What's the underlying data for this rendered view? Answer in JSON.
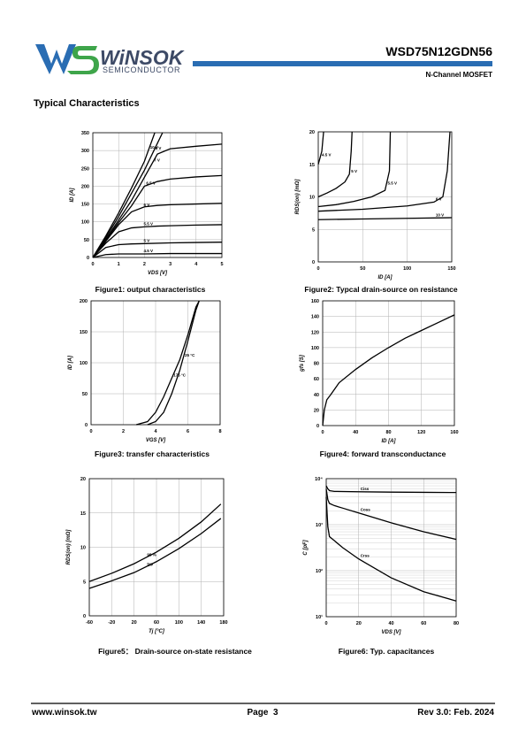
{
  "header": {
    "logo_main": "WiNSOK",
    "logo_sub": "SEMICONDUCTOR",
    "part_number": "WSD75N12GDN56",
    "device_type": "N-Channel MOSFET"
  },
  "section_title": "Typical Characteristics",
  "captions": [
    "Figure1: output characteristics",
    "Figure2: Typcal  drain-source on resistance",
    "Figure3: transfer characteristics",
    "Figure4: forward transconductance",
    "Figure5： Drain-source on-state resistance",
    "Figure6:  Typ. capacitances"
  ],
  "chart_data": [
    {
      "type": "line",
      "x_label": "VDS [V]",
      "y_label": "ID [A]",
      "xlim": [
        0,
        5
      ],
      "xticks": [
        0,
        1,
        2,
        3,
        4,
        5
      ],
      "ylim": [
        0,
        350
      ],
      "yticks": [
        0,
        50,
        100,
        150,
        200,
        250,
        300,
        350
      ],
      "grid": true,
      "series": [
        {
          "name": "10 V",
          "x": [
            0,
            0.5,
            1,
            1.5,
            2,
            2.4
          ],
          "values": [
            0,
            60,
            125,
            195,
            270,
            350
          ]
        },
        {
          "name": "8 V",
          "x": [
            0,
            0.5,
            1,
            1.5,
            2,
            2.5,
            2.7
          ],
          "values": [
            0,
            55,
            115,
            180,
            245,
            320,
            350
          ]
        },
        {
          "name": "7 V",
          "x": [
            0,
            0.5,
            1,
            1.5,
            2,
            2.5,
            3,
            4,
            5
          ],
          "values": [
            0,
            50,
            105,
            160,
            225,
            290,
            305,
            312,
            318
          ]
        },
        {
          "name": "6.5 V",
          "x": [
            0,
            0.5,
            1,
            1.5,
            2,
            2.5,
            3,
            4,
            5
          ],
          "values": [
            0,
            48,
            98,
            145,
            200,
            213,
            220,
            226,
            230
          ]
        },
        {
          "name": "6 V",
          "x": [
            0,
            0.5,
            1,
            1.5,
            2,
            2.5,
            3,
            4,
            5
          ],
          "values": [
            0,
            45,
            92,
            128,
            142,
            146,
            148,
            150,
            152
          ]
        },
        {
          "name": "5.5 V",
          "x": [
            0,
            0.5,
            1,
            1.5,
            2,
            2.5,
            3,
            4,
            5
          ],
          "values": [
            0,
            40,
            72,
            83,
            86,
            88,
            89,
            91,
            92
          ]
        },
        {
          "name": "5 V",
          "x": [
            0,
            0.5,
            1,
            1.5,
            2,
            3,
            4,
            5
          ],
          "values": [
            0,
            28,
            36,
            38,
            39,
            41,
            42,
            43
          ]
        },
        {
          "name": "4.5 V",
          "x": [
            0,
            0.5,
            1,
            2,
            3,
            4,
            5
          ],
          "values": [
            0,
            8,
            10,
            10,
            11,
            11,
            11
          ]
        }
      ]
    },
    {
      "type": "line",
      "x_label": "ID [A]",
      "y_label": "RDS(on) [mΩ]",
      "xlim": [
        0,
        150
      ],
      "xticks": [
        0,
        50,
        100,
        150
      ],
      "ylim": [
        0,
        20
      ],
      "yticks": [
        0,
        5,
        10,
        15,
        20
      ],
      "grid": true,
      "series": [
        {
          "name": "4.5 V",
          "x": [
            0,
            2,
            4,
            5,
            6
          ],
          "values": [
            15,
            16,
            17,
            18.5,
            20
          ]
        },
        {
          "name": "5 V",
          "x": [
            0,
            10,
            20,
            30,
            35,
            37,
            38
          ],
          "values": [
            10,
            10.6,
            11.3,
            12.3,
            13.5,
            17,
            20
          ]
        },
        {
          "name": "5.5 V",
          "x": [
            0,
            20,
            40,
            60,
            75,
            80,
            81
          ],
          "values": [
            8.5,
            8.8,
            9.3,
            10,
            11,
            14,
            20
          ]
        },
        {
          "name": "6 V",
          "x": [
            0,
            50,
            100,
            130,
            140,
            145,
            148
          ],
          "values": [
            7.8,
            8.1,
            8.6,
            9.2,
            10,
            14,
            20
          ]
        },
        {
          "name": "10 V",
          "x": [
            0,
            50,
            100,
            150
          ],
          "values": [
            6.5,
            6.6,
            6.7,
            6.8
          ]
        }
      ]
    },
    {
      "type": "line",
      "x_label": "VGS [V]",
      "y_label": "ID [A]",
      "xlim": [
        0,
        8
      ],
      "xticks": [
        0,
        2,
        4,
        6,
        8
      ],
      "ylim": [
        0,
        200
      ],
      "yticks": [
        0,
        50,
        100,
        150,
        200
      ],
      "grid": true,
      "series": [
        {
          "name": "175 °C",
          "x": [
            2.8,
            3.5,
            4,
            4.5,
            5,
            5.5,
            6,
            6.5,
            6.7
          ],
          "values": [
            0,
            5,
            20,
            45,
            75,
            105,
            145,
            190,
            200
          ]
        },
        {
          "name": "25 °C",
          "x": [
            3.5,
            4,
            4.5,
            5,
            5.5,
            6,
            6.5,
            6.7
          ],
          "values": [
            0,
            5,
            20,
            50,
            88,
            135,
            185,
            200
          ]
        }
      ]
    },
    {
      "type": "line",
      "x_label": "ID [A]",
      "y_label": "gfs [S]",
      "xlim": [
        0,
        160
      ],
      "xticks": [
        0,
        40,
        80,
        120,
        160
      ],
      "ylim": [
        0,
        160
      ],
      "yticks": [
        0,
        20,
        40,
        60,
        80,
        100,
        120,
        140,
        160
      ],
      "grid": true,
      "series": [
        {
          "x": [
            0,
            2,
            5,
            10,
            20,
            40,
            60,
            80,
            100,
            120,
            140,
            160
          ],
          "values": [
            0,
            20,
            33,
            40,
            55,
            72,
            87,
            100,
            112,
            122,
            132,
            142
          ]
        }
      ]
    },
    {
      "type": "line",
      "x_label": "Tj [°C]",
      "y_label": "RDS(on) [mΩ]",
      "xlim": [
        -60,
        180
      ],
      "xticks": [
        -60,
        -20,
        20,
        60,
        100,
        140,
        180
      ],
      "ylim": [
        0,
        20
      ],
      "yticks": [
        0,
        5,
        10,
        15,
        20
      ],
      "grid": true,
      "series": [
        {
          "name": "98 %",
          "x": [
            -60,
            -20,
            20,
            60,
            100,
            140,
            175
          ],
          "values": [
            5,
            6.2,
            7.6,
            9.3,
            11.3,
            13.7,
            16.3
          ]
        },
        {
          "name": "typ",
          "x": [
            -60,
            -20,
            20,
            60,
            100,
            140,
            175
          ],
          "values": [
            4,
            5.1,
            6.3,
            7.9,
            9.8,
            12,
            14.2
          ]
        }
      ]
    },
    {
      "type": "line",
      "x_label": "VDS [V]",
      "y_label": "C [pF]",
      "xlim": [
        0,
        80
      ],
      "xticks": [
        0,
        20,
        40,
        60,
        80
      ],
      "ylim": [
        10,
        10000
      ],
      "log_y": true,
      "yticks": [
        {
          "value": 10,
          "label": "10¹"
        },
        {
          "value": 100,
          "label": "10²"
        },
        {
          "value": 1000,
          "label": "10³"
        },
        {
          "value": 10000,
          "label": "10⁴"
        }
      ],
      "grid": true,
      "series": [
        {
          "name": "Ciss",
          "x": [
            0,
            1,
            2,
            5,
            20,
            40,
            60,
            80
          ],
          "values": [
            7000,
            6000,
            5500,
            5300,
            5200,
            5100,
            5050,
            5000
          ]
        },
        {
          "name": "Coss",
          "x": [
            0,
            1,
            2,
            5,
            10,
            20,
            40,
            60,
            80
          ],
          "values": [
            6000,
            3500,
            2900,
            2600,
            2300,
            1800,
            1100,
            700,
            480
          ]
        },
        {
          "name": "Crss",
          "x": [
            0,
            1,
            2,
            5,
            10,
            20,
            40,
            60,
            80
          ],
          "values": [
            4000,
            900,
            550,
            450,
            320,
            180,
            70,
            35,
            22
          ]
        }
      ]
    }
  ],
  "footer": {
    "website": "www.winsok.tw",
    "page": "Page  3",
    "revision": "Rev 3.0: Feb. 2024"
  }
}
